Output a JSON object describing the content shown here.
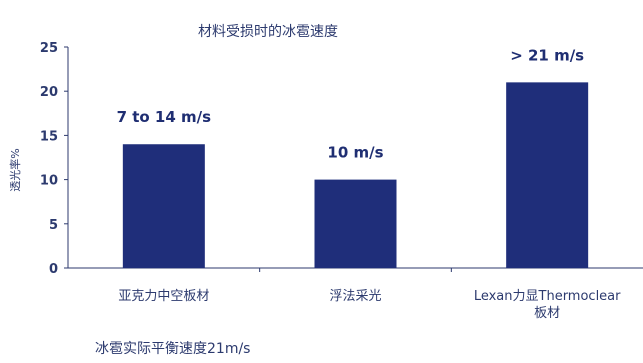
{
  "chart_data": {
    "type": "bar",
    "title": "材料受损时的冰雹速度",
    "ylabel": "透光率%",
    "xlabel": "",
    "ylim": [
      0,
      25
    ],
    "yticks": [
      0,
      5,
      10,
      15,
      20,
      25
    ],
    "categories": [
      [
        "亚克力中空板材"
      ],
      [
        "浮法采光"
      ],
      [
        "Lexan力显Thermoclear",
        "板材"
      ]
    ],
    "values": [
      14,
      10,
      21
    ],
    "data_labels": [
      "7 to 14 m/s",
      "10 m/s",
      "> 21 m/s"
    ],
    "bar_color": "#1f2e7a",
    "axis_color": "#2c3a6e",
    "grid": false,
    "legend": "none"
  },
  "footnote": "冰雹实际平衡速度21m/s"
}
